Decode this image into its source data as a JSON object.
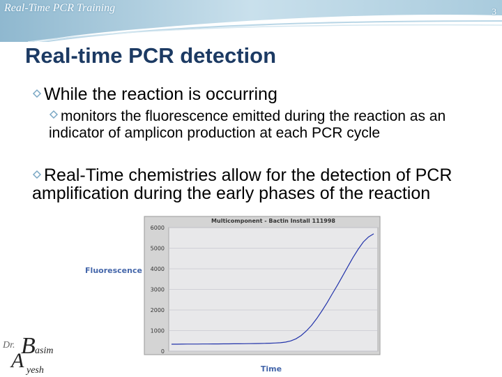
{
  "header": {
    "text": "Real-Time PCR Training",
    "slide_number": "3"
  },
  "title": "Real-time PCR  detection",
  "bullets": [
    {
      "text": "While the reaction is occurring",
      "sub": [
        "monitors the fluorescence emitted during the reaction as an indicator of amplicon production at each PCR cycle"
      ]
    },
    {
      "text": "Real-Time chemistries allow for the detection of PCR amplification during the early phases of the reaction",
      "sub": []
    }
  ],
  "logo": [
    "Dr.",
    "B",
    "asim",
    "A",
    "yesh"
  ],
  "chart_data": {
    "type": "line",
    "title": "Multicomponent - Bactin Install 111998",
    "x_label": "Time",
    "y_label": "Fluorescence",
    "color": "#2233aa",
    "grid": true,
    "ylim": [
      0,
      6000
    ],
    "yticks": [
      0,
      1000,
      2000,
      3000,
      4000,
      5000,
      6000
    ],
    "values": [
      340,
      340,
      342,
      345,
      345,
      347,
      348,
      350,
      352,
      353,
      355,
      356,
      358,
      360,
      362,
      365,
      368,
      372,
      378,
      385,
      395,
      410,
      440,
      500,
      600,
      760,
      980,
      1250,
      1580,
      1950,
      2350,
      2780,
      3200,
      3650,
      4100,
      4550,
      4950,
      5300,
      5550,
      5700
    ]
  }
}
